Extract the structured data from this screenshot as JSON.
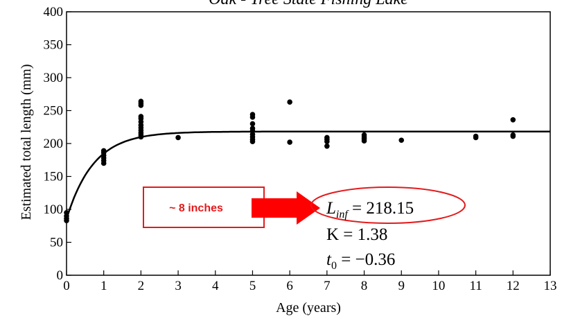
{
  "chart_data": {
    "type": "scatter",
    "title": "Oak - Tree State Fishing Lake",
    "xlabel": "Age (years)",
    "ylabel": "Estimated total length (mm)",
    "xlim": [
      0,
      13
    ],
    "ylim": [
      0,
      400
    ],
    "x_ticks": [
      0,
      1,
      2,
      3,
      4,
      5,
      6,
      7,
      8,
      9,
      10,
      11,
      12,
      13
    ],
    "y_ticks": [
      0,
      50,
      100,
      150,
      200,
      250,
      300,
      350,
      400
    ],
    "grid": false,
    "points": [
      [
        0,
        83
      ],
      [
        0,
        86
      ],
      [
        0,
        90
      ],
      [
        0,
        95
      ],
      [
        1,
        170
      ],
      [
        1,
        174
      ],
      [
        1,
        178
      ],
      [
        1,
        182
      ],
      [
        1,
        186
      ],
      [
        1,
        189
      ],
      [
        2,
        210
      ],
      [
        2,
        213
      ],
      [
        2,
        216
      ],
      [
        2,
        220
      ],
      [
        2,
        224
      ],
      [
        2,
        228
      ],
      [
        2,
        233
      ],
      [
        2,
        238
      ],
      [
        2,
        241
      ],
      [
        2,
        258
      ],
      [
        2,
        261
      ],
      [
        2,
        264
      ],
      [
        3,
        209
      ],
      [
        5,
        203
      ],
      [
        5,
        206
      ],
      [
        5,
        210
      ],
      [
        5,
        214
      ],
      [
        5,
        219
      ],
      [
        5,
        223
      ],
      [
        5,
        230
      ],
      [
        5,
        240
      ],
      [
        5,
        244
      ],
      [
        6,
        202
      ],
      [
        6,
        263
      ],
      [
        7,
        196
      ],
      [
        7,
        203
      ],
      [
        7,
        206
      ],
      [
        7,
        209
      ],
      [
        8,
        204
      ],
      [
        8,
        207
      ],
      [
        8,
        210
      ],
      [
        8,
        213
      ],
      [
        9,
        205
      ],
      [
        11,
        209
      ],
      [
        11,
        211
      ],
      [
        12,
        211
      ],
      [
        12,
        213
      ],
      [
        12,
        236
      ]
    ],
    "fit": {
      "model": "von Bertalanffy",
      "L_inf": 218.15,
      "K": 1.38,
      "t0": -0.36
    },
    "annotations": {
      "inches_label": "~ 8 inches",
      "linf_sym": "L",
      "linf_sub": "inf",
      "linf_value": " = 218.15",
      "k_text": "K = 1.38",
      "t0_sym": "t",
      "t0_sub": "0",
      "t0_value": " = −0.36"
    },
    "colors": {
      "points": "#000000",
      "fit_line": "#000000",
      "highlight": "#e31a1c",
      "arrow": "#ff0000"
    }
  }
}
